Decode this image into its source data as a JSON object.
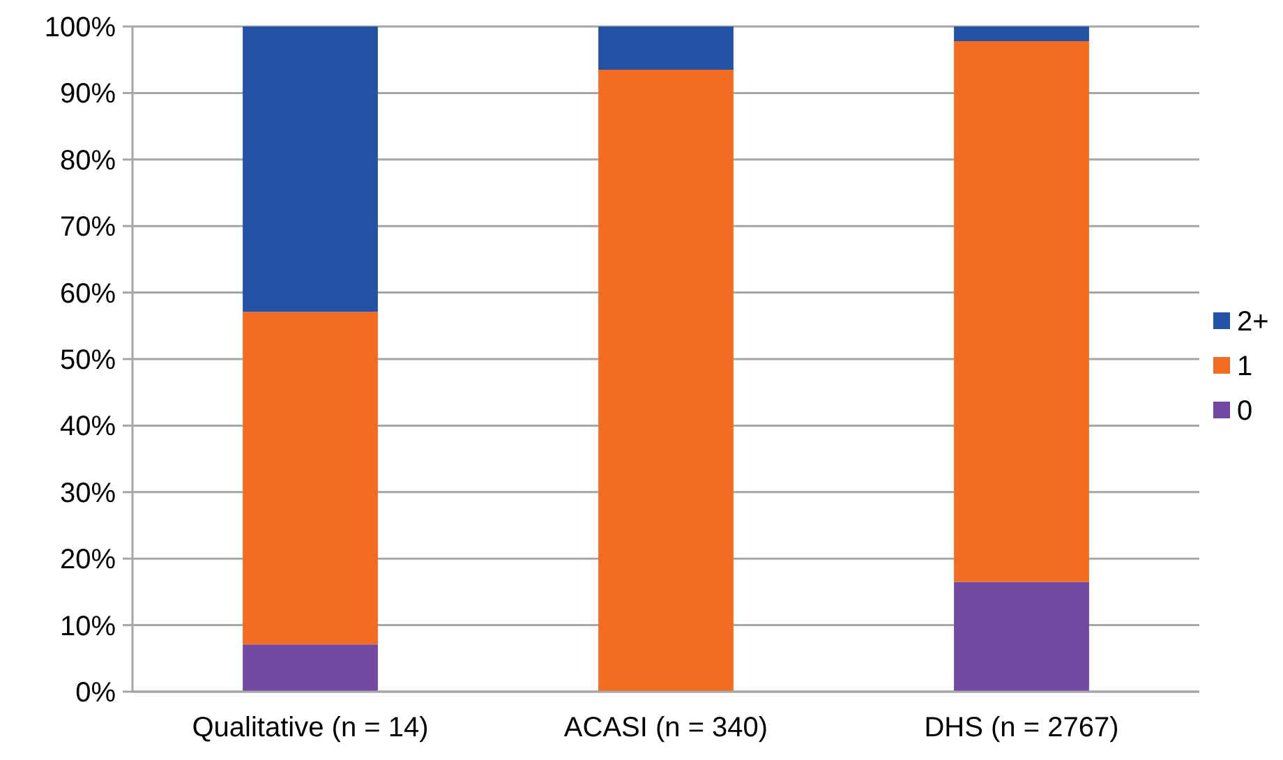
{
  "chart_data": {
    "type": "bar",
    "stacked": true,
    "categories": [
      "Qualitative (n = 14)",
      "ACASI (n = 340)",
      "DHS (n = 2767)"
    ],
    "series": [
      {
        "name": "0",
        "color": "#7149a0",
        "values": [
          7.1,
          0,
          16.5
        ]
      },
      {
        "name": "1",
        "color": "#f26c22",
        "values": [
          50,
          93.5,
          81.3
        ]
      },
      {
        "name": "2+",
        "color": "#2452a5",
        "values": [
          42.9,
          6.5,
          2.2
        ]
      }
    ],
    "ylim": [
      0,
      100
    ],
    "yticks": [
      {
        "value": 0,
        "label": "0%"
      },
      {
        "value": 10,
        "label": "10%"
      },
      {
        "value": 20,
        "label": "20%"
      },
      {
        "value": 30,
        "label": "30%"
      },
      {
        "value": 40,
        "label": "40%"
      },
      {
        "value": 50,
        "label": "50%"
      },
      {
        "value": 60,
        "label": "60%"
      },
      {
        "value": 70,
        "label": "70%"
      },
      {
        "value": 80,
        "label": "80%"
      },
      {
        "value": 90,
        "label": "90%"
      },
      {
        "value": 100,
        "label": "100%"
      }
    ],
    "grid": "y",
    "legend": "right"
  }
}
